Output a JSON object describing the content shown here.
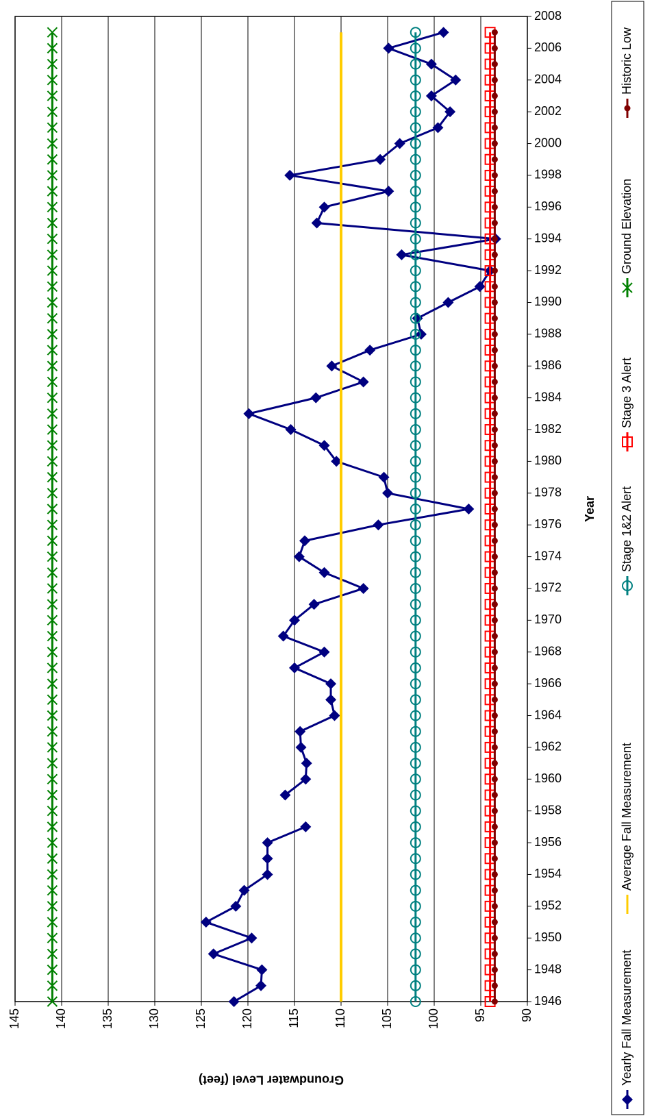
{
  "chart_data": {
    "type": "line",
    "x_label": "Year",
    "y_label": "Groundwater Level (feet)",
    "x": [
      1946,
      1947,
      1948,
      1949,
      1950,
      1951,
      1952,
      1953,
      1954,
      1955,
      1956,
      1957,
      1958,
      1959,
      1960,
      1961,
      1962,
      1963,
      1964,
      1965,
      1966,
      1967,
      1968,
      1969,
      1970,
      1971,
      1972,
      1973,
      1974,
      1975,
      1976,
      1977,
      1978,
      1979,
      1980,
      1981,
      1982,
      1983,
      1984,
      1985,
      1986,
      1987,
      1988,
      1989,
      1990,
      1991,
      1992,
      1993,
      1994,
      1995,
      1996,
      1997,
      1998,
      1999,
      2000,
      2001,
      2002,
      2003,
      2004,
      2005,
      2006,
      2007
    ],
    "xlim": [
      1946,
      2008
    ],
    "xticks": [
      1946,
      1948,
      1950,
      1952,
      1954,
      1956,
      1958,
      1960,
      1962,
      1964,
      1966,
      1968,
      1970,
      1972,
      1974,
      1976,
      1978,
      1980,
      1982,
      1984,
      1986,
      1988,
      1990,
      1992,
      1994,
      1996,
      1998,
      2000,
      2002,
      2004,
      2006,
      2008
    ],
    "ylim": [
      90,
      145
    ],
    "yticks": [
      90,
      95,
      100,
      105,
      110,
      115,
      120,
      125,
      130,
      135,
      140,
      145
    ],
    "grid": true,
    "legend": "right",
    "series": [
      {
        "name": "Yearly Fall Measurement",
        "color": "#000080",
        "marker": "diamond",
        "values": [
          121.5,
          118.6,
          118.5,
          123.7,
          119.6,
          124.5,
          121.3,
          120.4,
          117.9,
          117.9,
          117.9,
          113.8,
          null,
          116.0,
          113.8,
          113.7,
          114.3,
          114.4,
          110.7,
          111.1,
          111.1,
          115.0,
          111.8,
          116.2,
          115.0,
          112.9,
          107.6,
          111.8,
          114.5,
          113.9,
          106.0,
          96.3,
          105.0,
          105.4,
          110.5,
          111.8,
          115.4,
          119.9,
          112.7,
          107.6,
          111.0,
          106.9,
          101.4,
          101.8,
          98.5,
          95.1,
          94.0,
          103.5,
          93.4,
          112.6,
          111.8,
          104.9,
          115.5,
          105.8,
          103.7,
          99.6,
          98.3,
          100.3,
          97.7,
          100.3,
          104.9,
          99.0
        ]
      },
      {
        "name": "Average Fall Measurement",
        "color": "#FFCC00",
        "marker": "none",
        "values": [
          110,
          110,
          110,
          110,
          110,
          110,
          110,
          110,
          110,
          110,
          110,
          110,
          110,
          110,
          110,
          110,
          110,
          110,
          110,
          110,
          110,
          110,
          110,
          110,
          110,
          110,
          110,
          110,
          110,
          110,
          110,
          110,
          110,
          110,
          110,
          110,
          110,
          110,
          110,
          110,
          110,
          110,
          110,
          110,
          110,
          110,
          110,
          110,
          110,
          110,
          110,
          110,
          110,
          110,
          110,
          110,
          110,
          110,
          110,
          110,
          110,
          110
        ]
      },
      {
        "name": "Stage 1&2 Alert",
        "color": "#008080",
        "marker": "circle",
        "values": [
          102,
          102,
          102,
          102,
          102,
          102,
          102,
          102,
          102,
          102,
          102,
          102,
          102,
          102,
          102,
          102,
          102,
          102,
          102,
          102,
          102,
          102,
          102,
          102,
          102,
          102,
          102,
          102,
          102,
          102,
          102,
          102,
          102,
          102,
          102,
          102,
          102,
          102,
          102,
          102,
          102,
          102,
          102,
          102,
          102,
          102,
          102,
          102,
          102,
          102,
          102,
          102,
          102,
          102,
          102,
          102,
          102,
          102,
          102,
          102,
          102,
          102
        ]
      },
      {
        "name": "Stage 3 Alert",
        "color": "#FF0000",
        "marker": "square",
        "values": [
          94,
          94,
          94,
          94,
          94,
          94,
          94,
          94,
          94,
          94,
          94,
          94,
          94,
          94,
          94,
          94,
          94,
          94,
          94,
          94,
          94,
          94,
          94,
          94,
          94,
          94,
          94,
          94,
          94,
          94,
          94,
          94,
          94,
          94,
          94,
          94,
          94,
          94,
          94,
          94,
          94,
          94,
          94,
          94,
          94,
          94,
          94,
          94,
          94,
          94,
          94,
          94,
          94,
          94,
          94,
          94,
          94,
          94,
          94,
          94,
          94,
          94
        ]
      },
      {
        "name": "Ground Elevation",
        "color": "#008000",
        "marker": "x",
        "values": [
          141,
          141,
          141,
          141,
          141,
          141,
          141,
          141,
          141,
          141,
          141,
          141,
          141,
          141,
          141,
          141,
          141,
          141,
          141,
          141,
          141,
          141,
          141,
          141,
          141,
          141,
          141,
          141,
          141,
          141,
          141,
          141,
          141,
          141,
          141,
          141,
          141,
          141,
          141,
          141,
          141,
          141,
          141,
          141,
          141,
          141,
          141,
          141,
          141,
          141,
          141,
          141,
          141,
          141,
          141,
          141,
          141,
          141,
          141,
          141,
          141,
          141
        ]
      },
      {
        "name": "Historic Low",
        "color": "#800000",
        "marker": "dot",
        "values": [
          93.5,
          93.5,
          93.5,
          93.5,
          93.5,
          93.5,
          93.5,
          93.5,
          93.5,
          93.5,
          93.5,
          93.5,
          93.5,
          93.5,
          93.5,
          93.5,
          93.5,
          93.5,
          93.5,
          93.5,
          93.5,
          93.5,
          93.5,
          93.5,
          93.5,
          93.5,
          93.5,
          93.5,
          93.5,
          93.5,
          93.5,
          93.5,
          93.5,
          93.5,
          93.5,
          93.5,
          93.5,
          93.5,
          93.5,
          93.5,
          93.5,
          93.5,
          93.5,
          93.5,
          93.5,
          93.5,
          93.5,
          93.5,
          93.5,
          93.5,
          93.5,
          93.5,
          93.5,
          93.5,
          93.5,
          93.5,
          93.5,
          93.5,
          93.5,
          93.5,
          93.5,
          93.5
        ]
      }
    ]
  }
}
